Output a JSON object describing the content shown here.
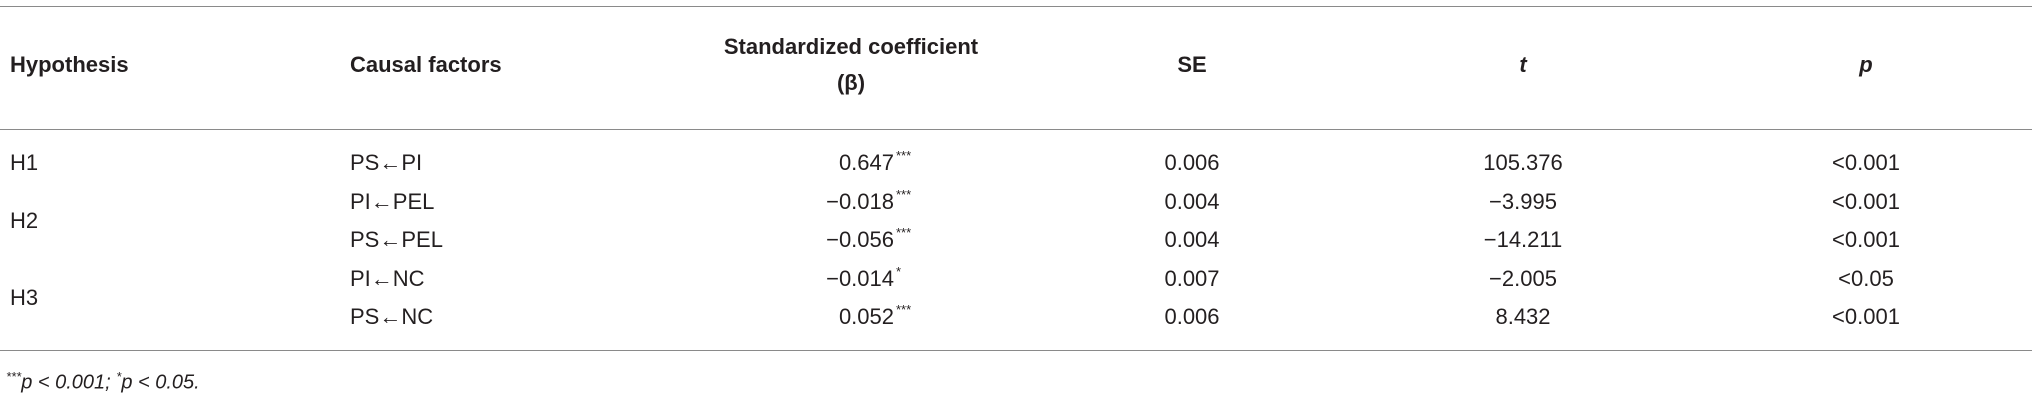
{
  "table": {
    "header": [
      "Hypothesis",
      "Causal factors",
      "Standardized coefficient",
      "(β)",
      "SE",
      "t",
      "p"
    ],
    "groups": [
      {
        "hypothesis": "H1",
        "rows": [
          {
            "cause": "PS←PI",
            "coef": "0.647",
            "sig": "***",
            "se": "0.006",
            "t": "105.376",
            "p": "<0.001"
          }
        ]
      },
      {
        "hypothesis": "H2",
        "rows": [
          {
            "cause": "PI←PEL",
            "coef": "−0.018",
            "sig": "***",
            "se": "0.004",
            "t": "−3.995",
            "p": "<0.001"
          },
          {
            "cause": "PS←PEL",
            "coef": "−0.056",
            "sig": "***",
            "se": "0.004",
            "t": "−14.211",
            "p": "<0.001"
          }
        ]
      },
      {
        "hypothesis": "H3",
        "rows": [
          {
            "cause": "PI←NC",
            "coef": "−0.014",
            "sig": "*",
            "se": "0.007",
            "t": "−2.005",
            "p": "<0.05"
          },
          {
            "cause": "PS←NC",
            "coef": "0.052",
            "sig": "***",
            "se": "0.006",
            "t": "8.432",
            "p": "<0.001"
          }
        ]
      }
    ],
    "footnote": [
      "***",
      "p < 0.001; ",
      "*",
      "p < 0.05."
    ]
  }
}
